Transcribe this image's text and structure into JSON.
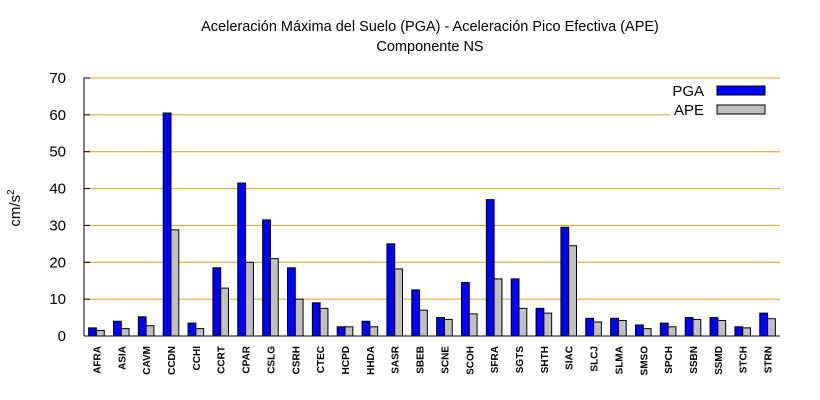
{
  "chart_data": {
    "type": "bar",
    "title": "Aceleración Máxima del Suelo (PGA) -  Aceleración Pico Efectiva (APE)",
    "subtitle": "Componente NS",
    "xlabel": "",
    "ylabel": "cm/s",
    "ylabel_superscript": "2",
    "ylim": [
      0,
      70
    ],
    "yticks": [
      0,
      10,
      20,
      30,
      40,
      50,
      60,
      70
    ],
    "grid": "horizontal",
    "legend_placement": "top-right",
    "categories": [
      "AFRA",
      "ASIA",
      "CAVM",
      "CCDN",
      "CCHI",
      "CCRT",
      "CPAR",
      "CSLG",
      "CSRH",
      "CTEC",
      "HCPD",
      "HHDA",
      "SASR",
      "SBEB",
      "SCNE",
      "SCOH",
      "SFRA",
      "SGTS",
      "SHTH",
      "SIAC",
      "SLCJ",
      "SLMA",
      "SMSO",
      "SPCH",
      "SSBN",
      "SSMD",
      "STCH",
      "STRN"
    ],
    "series": [
      {
        "name": "PGA",
        "color": "#0000ff",
        "values": [
          2.2,
          4.0,
          5.2,
          60.5,
          3.5,
          18.5,
          41.5,
          31.5,
          18.5,
          9.0,
          2.5,
          4.0,
          25.0,
          12.5,
          5.0,
          14.5,
          37.0,
          15.5,
          7.5,
          29.5,
          4.8,
          4.8,
          3.0,
          3.5,
          5.0,
          5.0,
          2.5,
          6.2
        ]
      },
      {
        "name": "APE",
        "color": "#c0c0c0",
        "values": [
          1.5,
          2.0,
          2.8,
          28.8,
          2.0,
          13.0,
          20.0,
          21.0,
          10.0,
          7.5,
          2.5,
          2.5,
          18.2,
          7.0,
          4.5,
          6.0,
          15.5,
          7.5,
          6.2,
          24.5,
          3.8,
          4.2,
          2.0,
          2.5,
          4.5,
          4.2,
          2.2,
          4.7
        ]
      }
    ],
    "colors": {
      "grid": "#d4a017",
      "axis": "#000000"
    }
  }
}
